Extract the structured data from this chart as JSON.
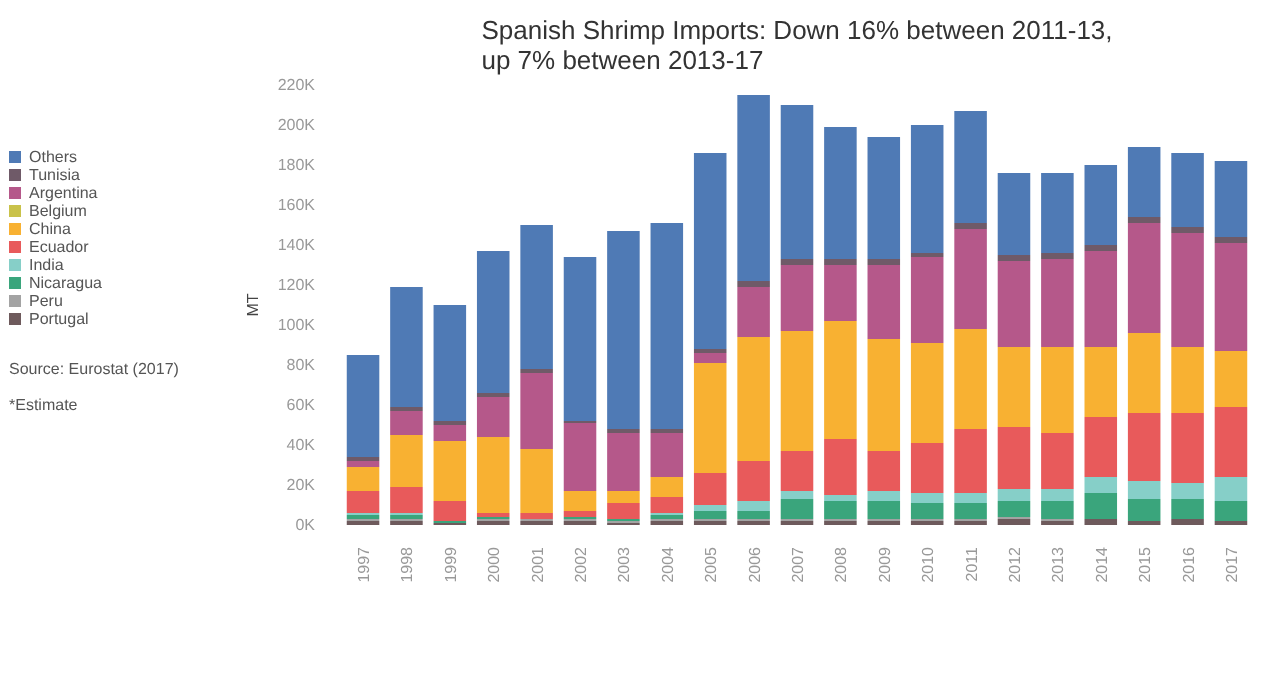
{
  "chart_data": {
    "type": "bar",
    "stacked": true,
    "title": "Spanish Shrimp Imports: Down 16% between 2011-13,\nup 7% between 2013-17",
    "ylabel": "MT",
    "categories": [
      "1997",
      "1998",
      "1999",
      "2000",
      "2001",
      "2002",
      "2003",
      "2004",
      "2005",
      "2006",
      "2007",
      "2008",
      "2009",
      "2010",
      "2011",
      "2012",
      "2013",
      "2014",
      "2015",
      "2016",
      "2017"
    ],
    "ylim": [
      0,
      220
    ],
    "yticks": [
      {
        "value": 0,
        "label": "0K"
      },
      {
        "value": 20,
        "label": "20K"
      },
      {
        "value": 40,
        "label": "40K"
      },
      {
        "value": 60,
        "label": "60K"
      },
      {
        "value": 80,
        "label": "80K"
      },
      {
        "value": 100,
        "label": "100K"
      },
      {
        "value": 120,
        "label": "120K"
      },
      {
        "value": 140,
        "label": "140K"
      },
      {
        "value": 160,
        "label": "160K"
      },
      {
        "value": 180,
        "label": "180K"
      },
      {
        "value": 200,
        "label": "200K"
      },
      {
        "value": 220,
        "label": "220K"
      }
    ],
    "grid": false,
    "legend": "left",
    "annotations": [
      "Source: Eurostat (2017)",
      "*Estimate"
    ],
    "series": [
      {
        "name": "Portugal",
        "color": "#6e5a5c",
        "values": [
          2,
          2,
          1,
          2,
          2,
          2,
          1,
          2,
          2,
          2,
          2,
          2,
          2,
          2,
          2,
          3,
          2,
          3,
          2,
          3,
          2
        ]
      },
      {
        "name": "Peru",
        "color": "#a3a3a3",
        "values": [
          1,
          1,
          0,
          1,
          1,
          1,
          1,
          1,
          1,
          1,
          1,
          1,
          1,
          1,
          1,
          1,
          1,
          0,
          0,
          0,
          0
        ]
      },
      {
        "name": "Nicaragua",
        "color": "#3aa57c",
        "values": [
          2,
          2,
          1,
          1,
          0,
          1,
          1,
          2,
          4,
          4,
          10,
          9,
          9,
          8,
          8,
          8,
          9,
          13,
          11,
          10,
          10
        ]
      },
      {
        "name": "India",
        "color": "#86cfc8",
        "values": [
          1,
          1,
          0,
          0,
          0,
          0,
          0,
          1,
          3,
          5,
          4,
          3,
          5,
          5,
          5,
          6,
          6,
          8,
          9,
          8,
          12
        ]
      },
      {
        "name": "Ecuador",
        "color": "#e85a5b",
        "values": [
          11,
          13,
          10,
          2,
          3,
          3,
          8,
          8,
          16,
          20,
          20,
          28,
          20,
          25,
          32,
          31,
          28,
          30,
          34,
          35,
          35
        ]
      },
      {
        "name": "China",
        "color": "#f8b132",
        "values": [
          12,
          26,
          30,
          38,
          32,
          10,
          6,
          10,
          55,
          62,
          60,
          59,
          56,
          50,
          50,
          40,
          43,
          35,
          40,
          33,
          28
        ]
      },
      {
        "name": "Belgium",
        "color": "#c9c24a",
        "values": [
          0,
          0,
          0,
          0,
          0,
          0,
          0,
          0,
          0,
          0,
          0,
          0,
          0,
          0,
          0,
          0,
          0,
          0,
          0,
          0,
          0
        ]
      },
      {
        "name": "Argentina",
        "color": "#b5588a",
        "values": [
          3,
          12,
          8,
          20,
          38,
          34,
          29,
          22,
          5,
          25,
          33,
          28,
          37,
          43,
          50,
          43,
          44,
          48,
          55,
          57,
          54
        ]
      },
      {
        "name": "Tunisia",
        "color": "#6f5a68",
        "values": [
          2,
          2,
          2,
          2,
          2,
          1,
          2,
          2,
          2,
          3,
          3,
          3,
          3,
          2,
          3,
          3,
          3,
          3,
          3,
          3,
          3
        ]
      },
      {
        "name": "Others",
        "color": "#4f7ab5",
        "values": [
          51,
          60,
          58,
          71,
          72,
          82,
          99,
          103,
          98,
          93,
          77,
          66,
          61,
          64,
          56,
          41,
          40,
          40,
          35,
          37,
          38
        ]
      }
    ]
  }
}
